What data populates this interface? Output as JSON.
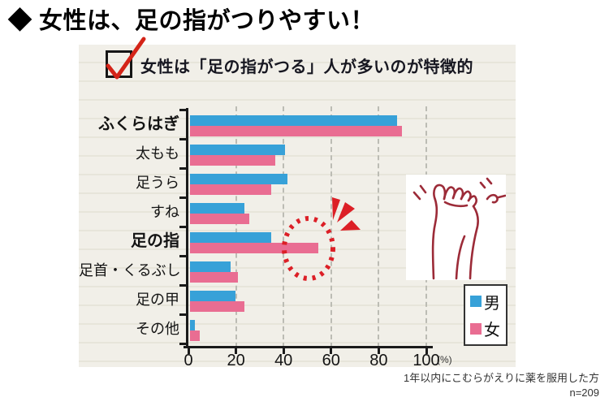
{
  "page": {
    "title": "◆ 女性は、足の指がつりやすい！"
  },
  "panel": {
    "callout": {
      "checked": true,
      "text": "女性は「足の指がつる」人が多いのが特徴的"
    }
  },
  "chart_data": {
    "type": "bar",
    "orientation": "horizontal",
    "unit": "%",
    "categories": [
      "ふくらはぎ",
      "太もも",
      "足うら",
      "すね",
      "足の指",
      "足首・くるぶし",
      "足の甲",
      "その他"
    ],
    "bold_categories": [
      "ふくらはぎ",
      "足の指"
    ],
    "series": [
      {
        "name": "男",
        "color": "#37a1d8",
        "values": [
          87,
          40,
          41,
          23,
          34,
          17,
          19,
          2
        ]
      },
      {
        "name": "女",
        "color": "#e96d92",
        "values": [
          89,
          36,
          34,
          25,
          54,
          20,
          23,
          4
        ]
      }
    ],
    "x_ticks": [
      0,
      20,
      40,
      60,
      80,
      100
    ],
    "xlim": [
      0,
      100
    ],
    "x_unit_label": "(%)",
    "grid": "vertical-dashed",
    "legend_position": "right-bottom-box",
    "highlight": {
      "category": "足の指",
      "series": "女",
      "style": "red-dotted-circle-with-burst"
    }
  },
  "legend": {
    "items": [
      {
        "label": "男",
        "color": "#37a1d8"
      },
      {
        "label": "女",
        "color": "#e96d92"
      }
    ]
  },
  "footnote": {
    "line1": "1年以内にこむらがえりに薬を服用した方",
    "line2": "n=209"
  },
  "colors": {
    "accent_red": "#dc1f26",
    "check_red": "#d42418",
    "sketch_red": "#9c2b38",
    "panel_bg": "#f1efe8"
  }
}
